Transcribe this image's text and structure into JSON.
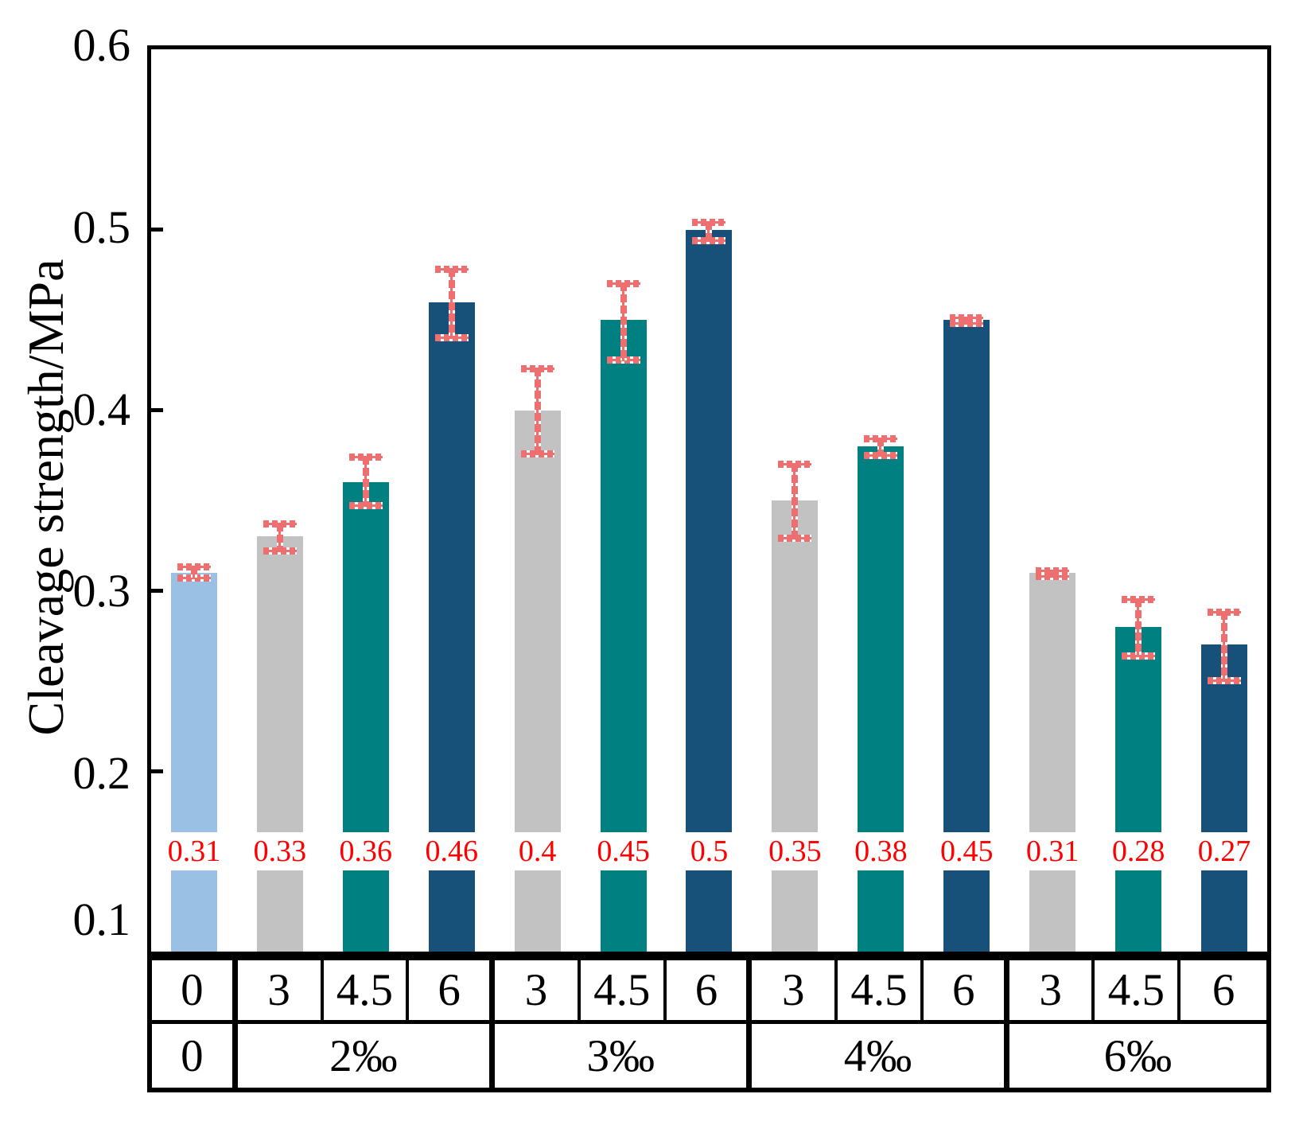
{
  "chart_data": {
    "type": "bar",
    "title": "",
    "ylabel": "Cleavage strength/MPa",
    "xlabel": "",
    "ylim": [
      0.1,
      0.6
    ],
    "yticks": [
      "0.6",
      "0.5",
      "0.4",
      "0.3",
      "0.2",
      "0.1"
    ],
    "grid": false,
    "legend_position": "none",
    "groups": [
      {
        "group_label": "0",
        "bars": [
          {
            "label": "0",
            "value": 0.31,
            "value_label": "0.31",
            "err_low": 0.305,
            "err_high": 0.315,
            "color_key": "baseline"
          }
        ]
      },
      {
        "group_label": "2‰",
        "bars": [
          {
            "label": "3",
            "value": 0.33,
            "value_label": "0.33",
            "err_low": 0.32,
            "err_high": 0.339,
            "color_key": "gray"
          },
          {
            "label": "4.5",
            "value": 0.36,
            "value_label": "0.36",
            "err_low": 0.345,
            "err_high": 0.376,
            "color_key": "teal"
          },
          {
            "label": "6",
            "value": 0.46,
            "value_label": "0.46",
            "err_low": 0.438,
            "err_high": 0.48,
            "color_key": "navy"
          }
        ]
      },
      {
        "group_label": "3‰",
        "bars": [
          {
            "label": "3",
            "value": 0.4,
            "value_label": "0.4",
            "err_low": 0.374,
            "err_high": 0.425,
            "color_key": "gray"
          },
          {
            "label": "4.5",
            "value": 0.45,
            "value_label": "0.45",
            "err_low": 0.426,
            "err_high": 0.472,
            "color_key": "teal"
          },
          {
            "label": "6",
            "value": 0.5,
            "value_label": "0.5",
            "err_low": 0.492,
            "err_high": 0.506,
            "color_key": "navy"
          }
        ]
      },
      {
        "group_label": "4‰",
        "bars": [
          {
            "label": "3",
            "value": 0.35,
            "value_label": "0.35",
            "err_low": 0.327,
            "err_high": 0.372,
            "color_key": "gray"
          },
          {
            "label": "4.5",
            "value": 0.38,
            "value_label": "0.38",
            "err_low": 0.373,
            "err_high": 0.386,
            "color_key": "teal"
          },
          {
            "label": "6",
            "value": 0.45,
            "value_label": "0.45",
            "err_low": 0.446,
            "err_high": 0.453,
            "color_key": "navy"
          }
        ]
      },
      {
        "group_label": "6‰",
        "bars": [
          {
            "label": "3",
            "value": 0.31,
            "value_label": "0.31",
            "err_low": 0.306,
            "err_high": 0.313,
            "color_key": "gray"
          },
          {
            "label": "4.5",
            "value": 0.28,
            "value_label": "0.28",
            "err_low": 0.262,
            "err_high": 0.297,
            "color_key": "teal"
          },
          {
            "label": "6",
            "value": 0.27,
            "value_label": "0.27",
            "err_low": 0.248,
            "err_high": 0.29,
            "color_key": "navy"
          }
        ]
      }
    ],
    "colors": {
      "baseline": "#9ac1e3",
      "gray": "#c2c2c2",
      "teal": "#008080",
      "navy": "#175078",
      "error_bar": "#ee6f6f",
      "value_label_text": "#ff0000",
      "axis": "#000000"
    }
  }
}
